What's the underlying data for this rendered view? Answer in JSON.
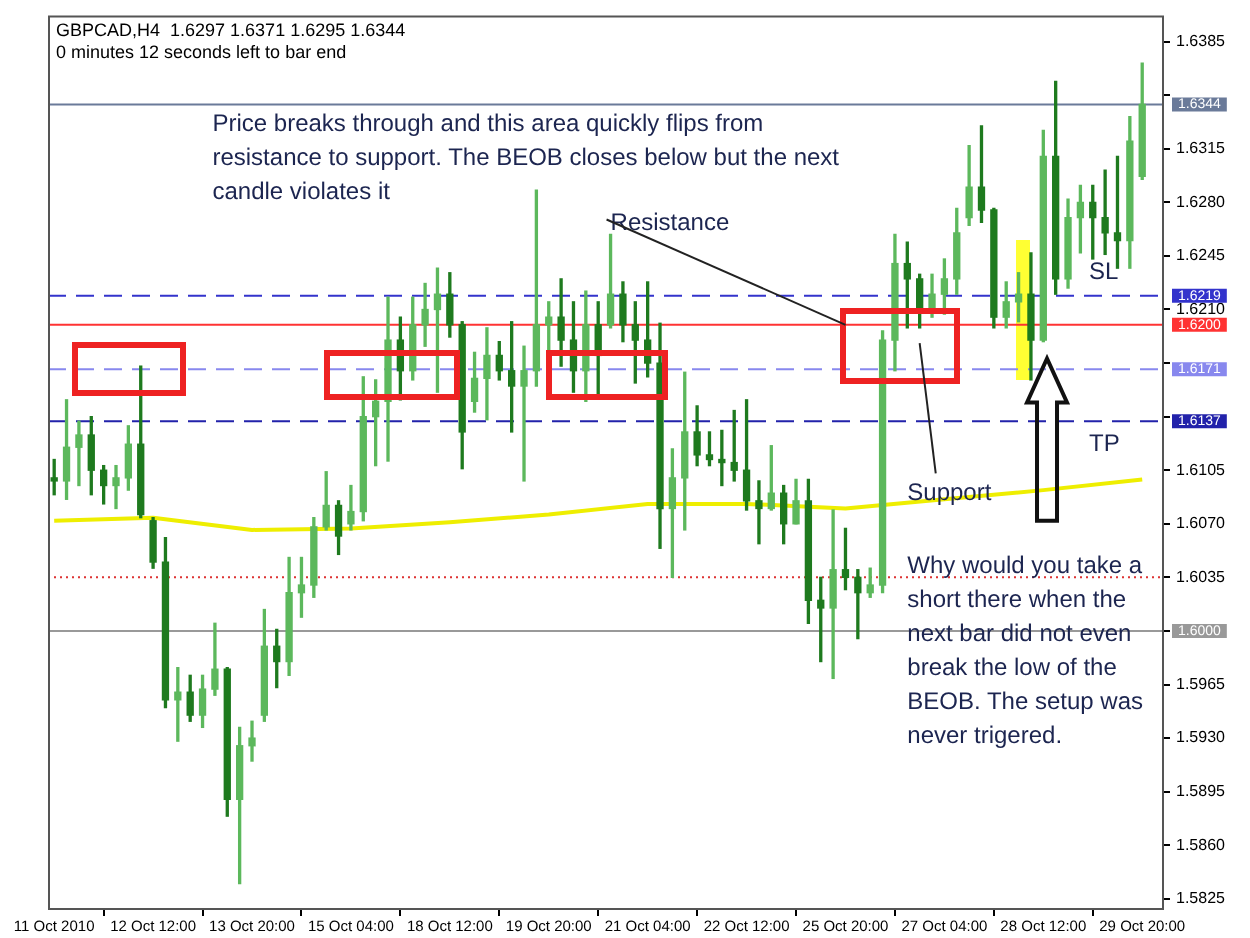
{
  "chart_data": {
    "type": "candlestick",
    "title": "GBPCAD,H4  1.6297 1.6371 1.6295 1.6344",
    "subtitle": "0 minutes 12 seconds left to bar end",
    "categories": [
      "11 Oct 2010",
      null,
      null,
      null,
      null,
      null,
      null,
      null,
      "12 Oct 12:00",
      null,
      null,
      null,
      null,
      null,
      null,
      null,
      "13 Oct 20:00",
      null,
      null,
      null,
      null,
      null,
      null,
      null,
      "15 Oct 04:00",
      null,
      null,
      null,
      null,
      null,
      null,
      null,
      "18 Oct 12:00",
      null,
      null,
      null,
      null,
      null,
      null,
      null,
      "19 Oct 20:00",
      null,
      null,
      null,
      null,
      null,
      null,
      null,
      "21 Oct 04:00",
      null,
      null,
      null,
      null,
      null,
      null,
      null,
      "22 Oct 12:00",
      null,
      null,
      null,
      null,
      null,
      null,
      null,
      "25 Oct 20:00",
      null,
      null,
      null,
      null,
      null,
      null,
      null,
      "27 Oct 04:00",
      null,
      null,
      null,
      null,
      null,
      null,
      null,
      "28 Oct 12:00",
      null,
      null,
      null,
      null,
      null,
      null,
      null,
      "29 Oct 20:00"
    ],
    "ohlc": [
      [
        1.61,
        1.6112,
        1.6089,
        1.6098
      ],
      [
        1.6098,
        1.6151,
        1.6086,
        1.612
      ],
      [
        1.612,
        1.6137,
        1.6095,
        1.6128
      ],
      [
        1.6128,
        1.614,
        1.6089,
        1.6105
      ],
      [
        1.6105,
        1.6108,
        1.6083,
        1.6095
      ],
      [
        1.6095,
        1.6108,
        1.608,
        1.61
      ],
      [
        1.61,
        1.6134,
        1.6092,
        1.6122
      ],
      [
        1.6122,
        1.6173,
        1.6074,
        1.6076
      ],
      [
        1.6072,
        1.6074,
        1.6041,
        1.6045
      ],
      [
        1.6045,
        1.6061,
        1.595,
        1.5955
      ],
      [
        1.5955,
        1.5976,
        1.5928,
        1.596
      ],
      [
        1.596,
        1.5971,
        1.5941,
        1.5945
      ],
      [
        1.5945,
        1.5971,
        1.5937,
        1.5962
      ],
      [
        1.5962,
        1.6005,
        1.5958,
        1.5975
      ],
      [
        1.5975,
        1.5976,
        1.5879,
        1.589
      ],
      [
        1.589,
        1.5937,
        1.5835,
        1.5925
      ],
      [
        1.5925,
        1.5941,
        1.5915,
        1.593
      ],
      [
        1.5945,
        1.6014,
        1.5941,
        1.599
      ],
      [
        1.599,
        1.6001,
        1.5963,
        1.598
      ],
      [
        1.598,
        1.6048,
        1.5971,
        1.6025
      ],
      [
        1.6025,
        1.6048,
        1.6009,
        1.603
      ],
      [
        1.603,
        1.6074,
        1.6022,
        1.6068
      ],
      [
        1.6068,
        1.6104,
        1.6066,
        1.6082
      ],
      [
        1.6082,
        1.6085,
        1.605,
        1.6062
      ],
      [
        1.607,
        1.6095,
        1.6066,
        1.6078
      ],
      [
        1.6078,
        1.6166,
        1.6072,
        1.614
      ],
      [
        1.614,
        1.6164,
        1.6108,
        1.615
      ],
      [
        1.615,
        1.6218,
        1.6111,
        1.619
      ],
      [
        1.619,
        1.6205,
        1.6151,
        1.617
      ],
      [
        1.617,
        1.6218,
        1.6164,
        1.62
      ],
      [
        1.62,
        1.6227,
        1.6186,
        1.621
      ],
      [
        1.621,
        1.6237,
        1.6156,
        1.622
      ],
      [
        1.622,
        1.6234,
        1.6192,
        1.62
      ],
      [
        1.62,
        1.6202,
        1.6106,
        1.613
      ],
      [
        1.615,
        1.6182,
        1.6143,
        1.6165
      ],
      [
        1.6165,
        1.6198,
        1.6138,
        1.618
      ],
      [
        1.618,
        1.6189,
        1.6164,
        1.617
      ],
      [
        1.617,
        1.6202,
        1.613,
        1.616
      ],
      [
        1.616,
        1.6186,
        1.6098,
        1.617
      ],
      [
        1.617,
        1.6288,
        1.616,
        1.62
      ],
      [
        1.62,
        1.6215,
        1.6182,
        1.6205
      ],
      [
        1.6205,
        1.623,
        1.6173,
        1.619
      ],
      [
        1.619,
        1.6215,
        1.6156,
        1.617
      ],
      [
        1.617,
        1.6222,
        1.615,
        1.62
      ],
      [
        1.62,
        1.6215,
        1.6153,
        1.618
      ],
      [
        1.62,
        1.6259,
        1.6198,
        1.622
      ],
      [
        1.622,
        1.6228,
        1.6189,
        1.62
      ],
      [
        1.62,
        1.6215,
        1.6162,
        1.619
      ],
      [
        1.619,
        1.6228,
        1.6166,
        1.6175
      ],
      [
        1.6175,
        1.6201,
        1.6054,
        1.608
      ],
      [
        1.608,
        1.6119,
        1.6035,
        1.61
      ],
      [
        1.61,
        1.6169,
        1.6066,
        1.613
      ],
      [
        1.613,
        1.6147,
        1.6108,
        1.6115
      ],
      [
        1.6115,
        1.613,
        1.6108,
        1.6112
      ],
      [
        1.6112,
        1.6131,
        1.6095,
        1.611
      ],
      [
        1.611,
        1.6144,
        1.6098,
        1.6105
      ],
      [
        1.6105,
        1.6151,
        1.6079,
        1.6085
      ],
      [
        1.6085,
        1.6098,
        1.6057,
        1.608
      ],
      [
        1.608,
        1.6121,
        1.6079,
        1.609
      ],
      [
        1.609,
        1.6095,
        1.6057,
        1.607
      ],
      [
        1.607,
        1.6099,
        1.607,
        1.6085
      ],
      [
        1.6085,
        1.6099,
        1.6005,
        1.602
      ],
      [
        1.602,
        1.6035,
        1.598,
        1.6015
      ],
      [
        1.6015,
        1.6079,
        1.5969,
        1.604
      ],
      [
        1.604,
        1.6067,
        1.6027,
        1.6035
      ],
      [
        1.6035,
        1.604,
        1.5995,
        1.6025
      ],
      [
        1.6025,
        1.6041,
        1.6022,
        1.603
      ],
      [
        1.603,
        1.6196,
        1.6025,
        1.619
      ],
      [
        1.619,
        1.6259,
        1.617,
        1.624
      ],
      [
        1.624,
        1.6254,
        1.6198,
        1.623
      ],
      [
        1.623,
        1.6233,
        1.6198,
        1.621
      ],
      [
        1.621,
        1.6233,
        1.6205,
        1.622
      ],
      [
        1.622,
        1.6243,
        1.6207,
        1.623
      ],
      [
        1.623,
        1.6276,
        1.622,
        1.626
      ],
      [
        1.627,
        1.6317,
        1.6265,
        1.629
      ],
      [
        1.629,
        1.633,
        1.6267,
        1.6275
      ],
      [
        1.6275,
        1.6276,
        1.6198,
        1.6205
      ],
      [
        1.6205,
        1.6228,
        1.6198,
        1.6215
      ],
      [
        1.6215,
        1.6234,
        1.6202,
        1.622
      ],
      [
        1.622,
        1.6247,
        1.6164,
        1.619
      ],
      [
        1.619,
        1.6327,
        1.6189,
        1.631
      ],
      [
        1.631,
        1.6359,
        1.622,
        1.623
      ],
      [
        1.623,
        1.6282,
        1.6224,
        1.627
      ],
      [
        1.627,
        1.6291,
        1.6247,
        1.628
      ],
      [
        1.628,
        1.6291,
        1.6243,
        1.627
      ],
      [
        1.627,
        1.6301,
        1.6246,
        1.626
      ],
      [
        1.626,
        1.631,
        1.6237,
        1.6255
      ],
      [
        1.6255,
        1.6336,
        1.6237,
        1.632
      ],
      [
        1.6297,
        1.6371,
        1.6295,
        1.6344
      ]
    ],
    "colors": [
      "#1e7a1e",
      "#5cb85c",
      "#5cb85c",
      "#1e7a1e",
      "#1e7a1e",
      "#5cb85c",
      "#5cb85c",
      "#1e7a1e",
      "#1e7a1e",
      "#1e7a1e",
      "#5cb85c",
      "#1e7a1e",
      "#5cb85c",
      "#5cb85c",
      "#1e7a1e",
      "#5cb85c",
      "#5cb85c",
      "#5cb85c",
      "#1e7a1e",
      "#5cb85c",
      "#5cb85c",
      "#5cb85c",
      "#5cb85c",
      "#1e7a1e",
      "#5cb85c",
      "#5cb85c",
      "#5cb85c",
      "#5cb85c",
      "#1e7a1e",
      "#5cb85c",
      "#5cb85c",
      "#5cb85c",
      "#1e7a1e",
      "#1e7a1e",
      "#5cb85c",
      "#5cb85c",
      "#1e7a1e",
      "#1e7a1e",
      "#5cb85c",
      "#5cb85c",
      "#5cb85c",
      "#1e7a1e",
      "#1e7a1e",
      "#5cb85c",
      "#1e7a1e",
      "#5cb85c",
      "#1e7a1e",
      "#1e7a1e",
      "#1e7a1e",
      "#1e7a1e",
      "#5cb85c",
      "#5cb85c",
      "#1e7a1e",
      "#1e7a1e",
      "#1e7a1e",
      "#1e7a1e",
      "#1e7a1e",
      "#1e7a1e",
      "#5cb85c",
      "#1e7a1e",
      "#5cb85c",
      "#1e7a1e",
      "#1e7a1e",
      "#5cb85c",
      "#1e7a1e",
      "#1e7a1e",
      "#5cb85c",
      "#5cb85c",
      "#5cb85c",
      "#1e7a1e",
      "#1e7a1e",
      "#5cb85c",
      "#5cb85c",
      "#5cb85c",
      "#5cb85c",
      "#1e7a1e",
      "#1e7a1e",
      "#5cb85c",
      "#5cb85c",
      "#1e7a1e",
      "#5cb85c",
      "#1e7a1e",
      "#5cb85c",
      "#5cb85c",
      "#1e7a1e",
      "#1e7a1e",
      "#1e7a1e",
      "#5cb85c",
      "#5cb85c"
    ],
    "series": [
      {
        "type": "line",
        "color": "#eeee00",
        "values": [
          1.6072,
          null,
          null,
          null,
          null,
          null,
          null,
          null,
          1.6074,
          null,
          null,
          null,
          null,
          null,
          null,
          null,
          1.6066,
          null,
          null,
          null,
          null,
          null,
          null,
          null,
          1.6067,
          null,
          null,
          null,
          null,
          null,
          null,
          null,
          1.6071,
          null,
          null,
          null,
          null,
          null,
          null,
          null,
          1.6076,
          null,
          null,
          null,
          null,
          null,
          null,
          null,
          1.6083,
          null,
          null,
          null,
          null,
          null,
          null,
          null,
          1.6083,
          null,
          null,
          null,
          null,
          null,
          null,
          null,
          1.608,
          null,
          null,
          null,
          null,
          null,
          null,
          null,
          1.6086,
          null,
          null,
          null,
          null,
          null,
          null,
          null,
          1.6092,
          null,
          null,
          null,
          null,
          null,
          null,
          null,
          1.6099
        ]
      }
    ],
    "ylim": [
      1.5819,
      1.6402
    ],
    "yticks": [
      1.6385,
      {
        "value": 1.635,
        "label": null
      },
      1.6315,
      {
        "value": 1.628,
        "label": "1.6280"
      },
      1.6245,
      {
        "value": 1.621,
        "label": "1.6210"
      },
      {
        "value": 1.6175,
        "label": null
      },
      {
        "value": 1.614,
        "label": null
      },
      1.6105,
      {
        "value": 1.607,
        "label": "1.6070"
      },
      1.6035,
      {
        "value": 1.6,
        "label": null
      },
      1.5965,
      {
        "value": 1.593,
        "label": "1.5930"
      },
      1.5895,
      {
        "value": 1.586,
        "label": "1.5860"
      },
      1.5825
    ],
    "ref_lines": [
      {
        "axis": "y",
        "value": 1.6344,
        "label": "1.6344",
        "color": "#6a7a99",
        "line_style": "solid"
      },
      {
        "axis": "y",
        "value": 1.6219,
        "label": "1.6219",
        "color": "#3333cc",
        "line_style": "dashed"
      },
      {
        "axis": "y",
        "value": 1.62,
        "label": "1.6200",
        "color": "#ff3333",
        "line_style": "solid"
      },
      {
        "axis": "y",
        "value": 1.6171,
        "label": "1.6171",
        "color": "#8888ee",
        "line_style": "dashed"
      },
      {
        "axis": "y",
        "value": 1.6137,
        "label": "1.6137",
        "color": "#2222aa",
        "line_style": "dashed"
      },
      {
        "axis": "y",
        "value": 1.6035,
        "color": "#dd3333",
        "line_style": "dotted"
      },
      {
        "axis": "y",
        "value": 1.6,
        "label": "1.6000",
        "color": "#999999",
        "line_style": "solid"
      }
    ],
    "annotations": [
      "Price breaks through and this area quickly flips from resistance to support. The BEOB closes below but the next candle violates it",
      {
        "text": "Resistance",
        "x": "25 Oct 20:00",
        "y": 1.62
      },
      "Support",
      "SL",
      "TP",
      "Why would you take a short there when the next bar did not even break the low of the BEOB. The setup was never trigered."
    ],
    "legend": false
  }
}
